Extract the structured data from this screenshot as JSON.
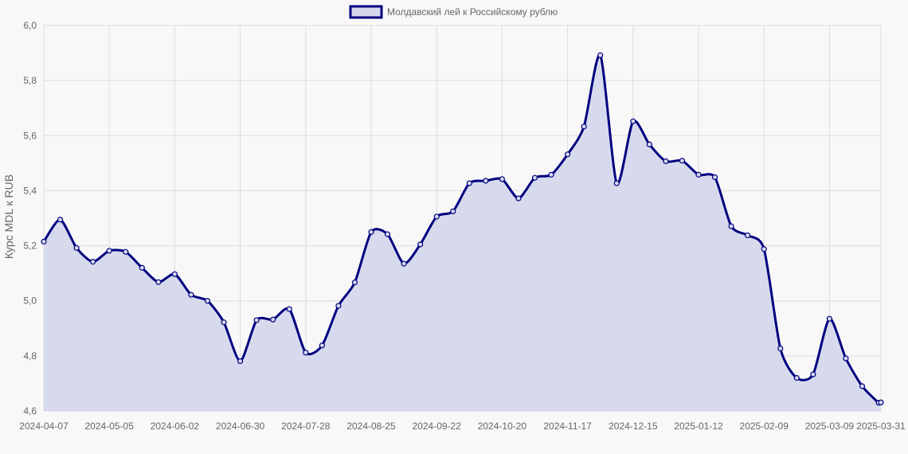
{
  "colors": {
    "line": "#000080",
    "fill": "#d5d8ec",
    "background": "#f8f8f8",
    "grid": "#dcdcdc",
    "text": "#666666"
  },
  "chart_data": {
    "type": "area",
    "title": "",
    "xlabel": "",
    "ylabel": "Курс MDL к RUB",
    "ylim": [
      4.6,
      6.0
    ],
    "y_ticks": [
      "6,0",
      "5,8",
      "5,6",
      "5,4",
      "5,2",
      "5,0",
      "4,8",
      "4,6"
    ],
    "x_tick_labels": [
      "2024-04-07",
      "2024-05-05",
      "2024-06-02",
      "2024-06-30",
      "2024-07-28",
      "2024-08-25",
      "2024-09-22",
      "2024-10-20",
      "2024-11-17",
      "2024-12-15",
      "2025-01-12",
      "2025-02-09",
      "2025-03-09",
      "2025-03-31"
    ],
    "grid": true,
    "legend": {
      "position": "top-center"
    },
    "series": [
      {
        "name": "Молдавский лей к Российскому рублю",
        "x": [
          "2024-04-07",
          "2024-04-14",
          "2024-04-21",
          "2024-04-28",
          "2024-05-05",
          "2024-05-12",
          "2024-05-19",
          "2024-05-26",
          "2024-06-02",
          "2024-06-09",
          "2024-06-16",
          "2024-06-23",
          "2024-06-30",
          "2024-07-07",
          "2024-07-14",
          "2024-07-21",
          "2024-07-28",
          "2024-08-04",
          "2024-08-11",
          "2024-08-18",
          "2024-08-25",
          "2024-09-01",
          "2024-09-08",
          "2024-09-15",
          "2024-09-22",
          "2024-09-29",
          "2024-10-06",
          "2024-10-13",
          "2024-10-20",
          "2024-10-27",
          "2024-11-03",
          "2024-11-10",
          "2024-11-17",
          "2024-11-24",
          "2024-12-01",
          "2024-12-08",
          "2024-12-15",
          "2024-12-22",
          "2024-12-29",
          "2025-01-05",
          "2025-01-12",
          "2025-01-19",
          "2025-01-26",
          "2025-02-02",
          "2025-02-09",
          "2025-02-16",
          "2025-02-23",
          "2025-03-02",
          "2025-03-09",
          "2025-03-16",
          "2025-03-23",
          "2025-03-30",
          "2025-03-31"
        ],
        "values": [
          5.215,
          5.295,
          5.192,
          5.142,
          5.182,
          5.178,
          5.12,
          5.068,
          5.097,
          5.022,
          5.0,
          4.922,
          4.781,
          4.93,
          4.932,
          4.97,
          4.812,
          4.838,
          4.982,
          5.067,
          5.25,
          5.242,
          5.135,
          5.205,
          5.306,
          5.325,
          5.427,
          5.436,
          5.442,
          5.372,
          5.447,
          5.458,
          5.532,
          5.633,
          5.892,
          5.427,
          5.652,
          5.568,
          5.507,
          5.509,
          5.458,
          5.449,
          5.271,
          5.238,
          5.188,
          4.827,
          4.72,
          4.733,
          4.935,
          4.791,
          4.69,
          4.63,
          4.631
        ]
      }
    ]
  }
}
